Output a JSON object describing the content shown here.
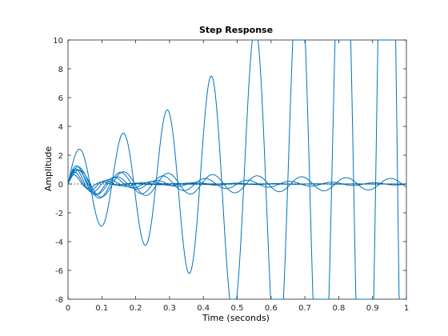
{
  "chart_data": {
    "type": "line",
    "title": "Step Response",
    "xlabel": "Time (seconds)",
    "ylabel": "Amplitude",
    "xlim": [
      0,
      1
    ],
    "ylim": [
      -8,
      10
    ],
    "x_ticks": [
      0,
      0.1,
      0.2,
      0.3,
      0.4,
      0.5,
      0.6,
      0.7,
      0.8,
      0.9,
      1
    ],
    "x_tick_labels": [
      "0",
      "0.1",
      "0.2",
      "0.3",
      "0.4",
      "0.5",
      "0.6",
      "0.7",
      "0.8",
      "0.9",
      "1"
    ],
    "y_ticks": [
      -8,
      -6,
      -4,
      -2,
      0,
      2,
      4,
      6,
      8,
      10
    ],
    "y_tick_labels": [
      "-8",
      "-6",
      "-4",
      "-2",
      "0",
      "2",
      "4",
      "6",
      "8",
      "10"
    ],
    "grid": false,
    "legend": "none",
    "line_color": "#0072BD",
    "reference_line": {
      "y": 0,
      "style": "dotted",
      "color": "#000000"
    },
    "series": [
      {
        "final": 0,
        "amp": 2.2,
        "freq": 7.7,
        "growth": 2.9,
        "phase": 1.2
      },
      {
        "final": 0,
        "amp": 1.0,
        "freq": 7.6,
        "growth": -1.0,
        "phase": 0.9
      },
      {
        "final": 0,
        "amp": 1.3,
        "freq": 8.0,
        "growth": -3.0,
        "phase": 1.3
      },
      {
        "final": 0,
        "amp": 1.2,
        "freq": 8.5,
        "growth": -6.0,
        "phase": 1.4
      },
      {
        "final": 0,
        "amp": 1.6,
        "freq": 9.0,
        "growth": -9.0,
        "phase": 1.5
      },
      {
        "final": 0,
        "amp": 1.1,
        "freq": 11.0,
        "growth": -14.0,
        "phase": 1.1
      },
      {
        "final": 0,
        "amp": 0.9,
        "freq": 12.0,
        "growth": -18.0,
        "phase": 0.7
      },
      {
        "final": 0,
        "amp": 1.4,
        "freq": 10.0,
        "growth": -12.0,
        "phase": 1.6
      }
    ]
  }
}
